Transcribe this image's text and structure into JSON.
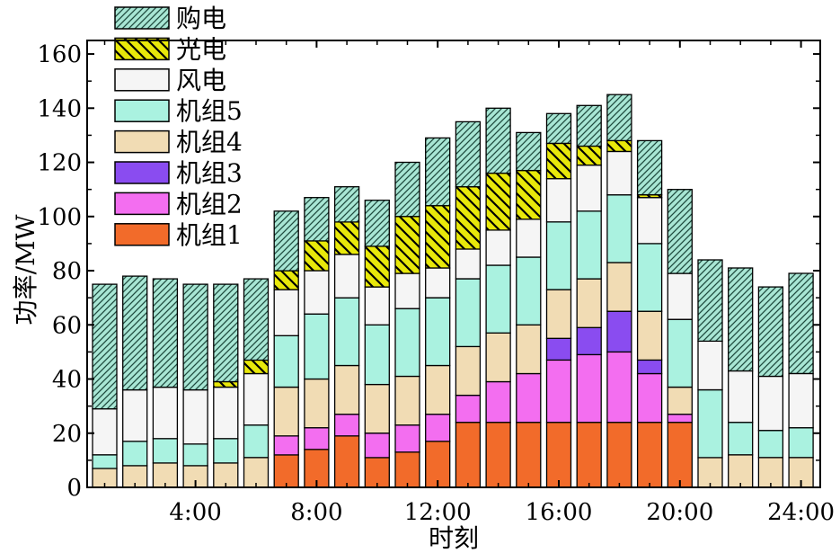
{
  "chart_data": {
    "type": "bar",
    "stacked": true,
    "title": "",
    "xlabel": "时刻",
    "ylabel": "功率/MW",
    "ylim": [
      0,
      165
    ],
    "yticks": [
      0,
      20,
      40,
      60,
      80,
      100,
      120,
      140,
      160
    ],
    "x_tick_labels": [
      "4:00",
      "8:00",
      "12:00",
      "16:00",
      "20:00",
      "24:00"
    ],
    "x_tick_hours": [
      4,
      8,
      12,
      16,
      20,
      24
    ],
    "hours": [
      1,
      2,
      3,
      4,
      5,
      6,
      7,
      8,
      9,
      10,
      11,
      12,
      13,
      14,
      15,
      16,
      17,
      18,
      19,
      20,
      21,
      22,
      23,
      24
    ],
    "legend_position": "top-left",
    "grid": false,
    "series": [
      {
        "name": "机组1",
        "color": "#f26b2a",
        "pattern": "solid",
        "values": [
          0,
          0,
          0,
          0,
          0,
          0,
          12,
          14,
          19,
          11,
          13,
          17,
          24,
          24,
          24,
          24,
          24,
          24,
          24,
          24,
          0,
          0,
          0,
          0
        ]
      },
      {
        "name": "机组2",
        "color": "#f36ef0",
        "pattern": "solid",
        "values": [
          0,
          0,
          0,
          0,
          0,
          0,
          7,
          8,
          8,
          9,
          10,
          10,
          10,
          15,
          18,
          23,
          25,
          26,
          18,
          3,
          0,
          0,
          0,
          0
        ]
      },
      {
        "name": "机组3",
        "color": "#8a4cf0",
        "pattern": "solid",
        "values": [
          0,
          0,
          0,
          0,
          0,
          0,
          0,
          0,
          0,
          0,
          0,
          0,
          0,
          0,
          0,
          8,
          10,
          15,
          5,
          0,
          0,
          0,
          0,
          0
        ]
      },
      {
        "name": "机组4",
        "color": "#f1dcb4",
        "pattern": "solid",
        "values": [
          7,
          8,
          9,
          8,
          9,
          11,
          18,
          18,
          18,
          18,
          18,
          18,
          18,
          18,
          18,
          18,
          18,
          18,
          18,
          10,
          11,
          12,
          11,
          11
        ]
      },
      {
        "name": "机组5",
        "color": "#aaf2e0",
        "pattern": "solid",
        "values": [
          5,
          9,
          9,
          8,
          9,
          12,
          19,
          24,
          25,
          22,
          25,
          25,
          25,
          25,
          25,
          25,
          25,
          25,
          25,
          25,
          25,
          12,
          10,
          11
        ]
      },
      {
        "name": "风电",
        "color": "#f5f5f5",
        "pattern": "solid",
        "values": [
          17,
          19,
          19,
          20,
          19,
          19,
          17,
          16,
          16,
          14,
          13,
          11,
          11,
          13,
          14,
          16,
          17,
          16,
          17,
          17,
          18,
          19,
          20,
          20
        ]
      },
      {
        "name": "光电",
        "color": "#e8e80a",
        "pattern": "hatch-back",
        "values": [
          0,
          0,
          0,
          0,
          2,
          5,
          7,
          11,
          12,
          15,
          21,
          23,
          23,
          21,
          18,
          13,
          7,
          4,
          1,
          0,
          0,
          0,
          0,
          0
        ]
      },
      {
        "name": "购电",
        "color": "#a8e6d4",
        "pattern": "hatch-fwd",
        "values": [
          46,
          42,
          40,
          39,
          36,
          30,
          22,
          16,
          13,
          17,
          20,
          25,
          24,
          24,
          14,
          11,
          15,
          17,
          20,
          31,
          30,
          38,
          33,
          37
        ]
      }
    ]
  }
}
